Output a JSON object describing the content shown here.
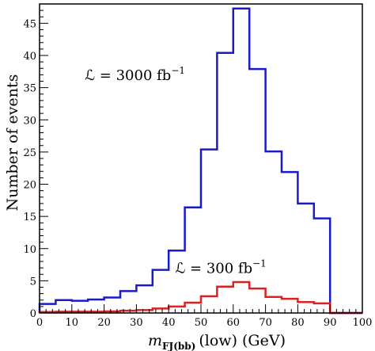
{
  "chart_data": {
    "type": "histogram",
    "xlabel_main": "m",
    "xlabel_sub": "FJ(bb)",
    "xlabel_rest": "(low)  (GeV)",
    "ylabel": "Number of events",
    "xlim": [
      0,
      100
    ],
    "ylim": [
      0,
      48
    ],
    "x_ticks": [
      0,
      10,
      20,
      30,
      40,
      50,
      60,
      70,
      80,
      90,
      100
    ],
    "y_ticks": [
      0,
      5,
      10,
      15,
      20,
      25,
      30,
      35,
      40,
      45
    ],
    "bin_edges": [
      0,
      5,
      10,
      15,
      20,
      25,
      30,
      35,
      40,
      45,
      50,
      55,
      60,
      65,
      70,
      75,
      80,
      85,
      90,
      95,
      100
    ],
    "series": [
      {
        "annotation_prefix": "ℒ = 3000 fb",
        "annotation_exp": "−1",
        "color": "#1a1acc",
        "values": [
          1.4,
          2.0,
          1.9,
          2.1,
          2.4,
          3.4,
          4.3,
          6.7,
          9.7,
          16.4,
          25.4,
          40.4,
          47.3,
          37.9,
          25.1,
          21.9,
          17.0,
          14.7,
          0,
          0
        ]
      },
      {
        "annotation_prefix": "ℒ = 300 fb",
        "annotation_exp": "−1",
        "color": "#e02020",
        "values": [
          0.15,
          0.2,
          0.2,
          0.2,
          0.25,
          0.35,
          0.45,
          0.7,
          1.0,
          1.6,
          2.6,
          4.1,
          4.8,
          3.8,
          2.5,
          2.2,
          1.7,
          1.5,
          0,
          0
        ]
      }
    ]
  }
}
